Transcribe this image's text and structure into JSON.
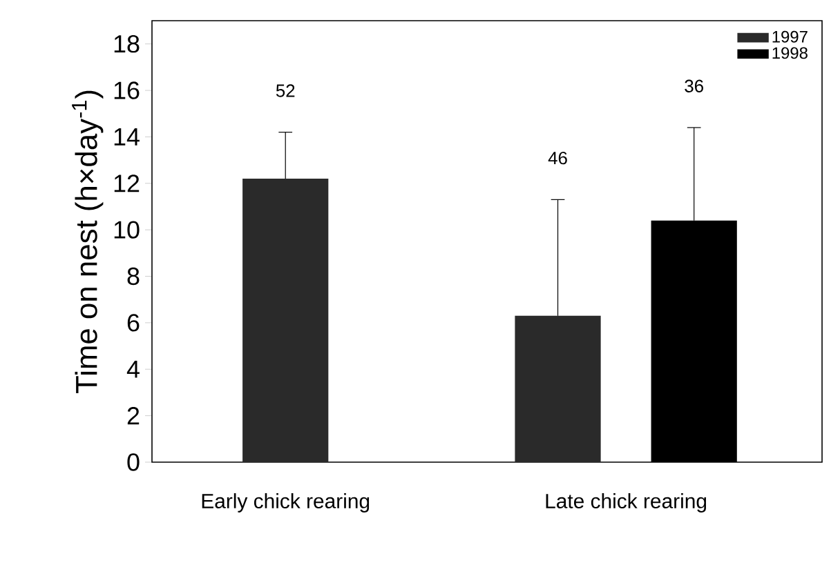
{
  "chart_data": {
    "type": "bar",
    "ylabel": "Time on nest (h×day$^{-1}$)",
    "categories": [
      "Early chick rearing",
      "Late chick rearing"
    ],
    "series": [
      {
        "name": "1997",
        "color": "#2a2a2a",
        "values": [
          12.2,
          6.3
        ],
        "errors": [
          [
            12.2,
            14.2
          ],
          [
            6.3,
            11.3
          ]
        ]
      },
      {
        "name": "1998",
        "color": "#000000",
        "values": [
          null,
          10.4
        ],
        "errors": [
          null,
          [
            10.4,
            14.4
          ]
        ]
      }
    ],
    "ylim": [
      0,
      19
    ],
    "yticks": [
      0,
      2,
      4,
      6,
      8,
      10,
      12,
      14,
      16,
      18
    ],
    "grid": false,
    "legend": "top right",
    "annotations": [
      "52",
      "46",
      "36"
    ]
  }
}
